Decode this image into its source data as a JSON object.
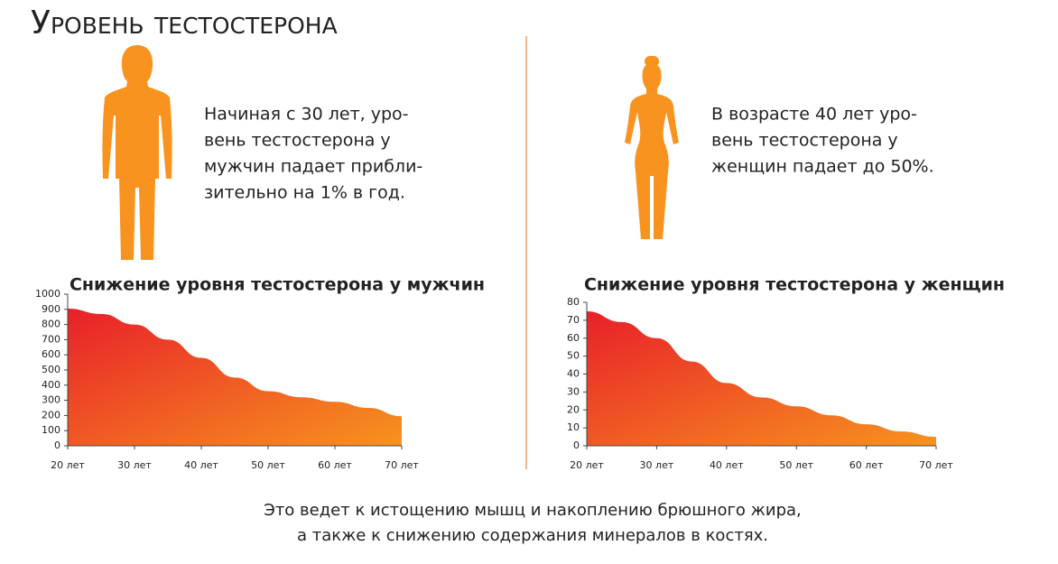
{
  "title": "Уровень тестостерона",
  "men_text": [
    "Начиная с 30 лет, уро-",
    "вень тестостерона у",
    "мужчин падает прибли-",
    "зительно на 1% в год."
  ],
  "women_text": [
    "В возрасте 40 лет уро-",
    "вень тестостерона у",
    "женщин падает до 50%."
  ],
  "footer": [
    "Это ведет к истощению мышц и накоплению брюшного жира,",
    "а также к снижению содержания минералов в костях."
  ],
  "chart_data": [
    {
      "type": "area",
      "title": "Снижение уровня тестостерона у мужчин",
      "x": [
        20,
        25,
        30,
        35,
        40,
        45,
        50,
        55,
        60,
        65,
        70
      ],
      "values": [
        905,
        870,
        800,
        700,
        580,
        450,
        360,
        320,
        290,
        250,
        195
      ],
      "color_start": "#e8202a",
      "color_end": "#f7931e",
      "xlim": [
        20,
        70
      ],
      "xticks": [
        {
          "value": 20,
          "label": "20 лет"
        },
        {
          "value": 30,
          "label": "30 лет"
        },
        {
          "value": 40,
          "label": "40 лет"
        },
        {
          "value": 50,
          "label": "50 лет"
        },
        {
          "value": 60,
          "label": "60 лет"
        },
        {
          "value": 70,
          "label": "70 лет"
        }
      ],
      "ylim": [
        0,
        1000
      ],
      "yticks": [
        0,
        100,
        200,
        300,
        400,
        500,
        600,
        700,
        800,
        900,
        1000
      ]
    },
    {
      "type": "area",
      "title": "Снижение уровня тестостерона у женщин",
      "x": [
        20,
        25,
        30,
        35,
        40,
        45,
        50,
        55,
        60,
        65,
        70
      ],
      "values": [
        75,
        69,
        60,
        47,
        35,
        27,
        22,
        17,
        12,
        8,
        5
      ],
      "color_start": "#e8202a",
      "color_end": "#f7931e",
      "xlim": [
        20,
        70
      ],
      "xticks": [
        {
          "value": 20,
          "label": "20 лет"
        },
        {
          "value": 30,
          "label": "30 лет"
        },
        {
          "value": 40,
          "label": "40 лет"
        },
        {
          "value": 50,
          "label": "50 лет"
        },
        {
          "value": 60,
          "label": "60 лет"
        },
        {
          "value": 70,
          "label": "70 лет"
        }
      ],
      "ylim": [
        0,
        80
      ],
      "yticks": [
        0,
        10,
        20,
        30,
        40,
        50,
        60,
        70,
        80
      ]
    }
  ]
}
